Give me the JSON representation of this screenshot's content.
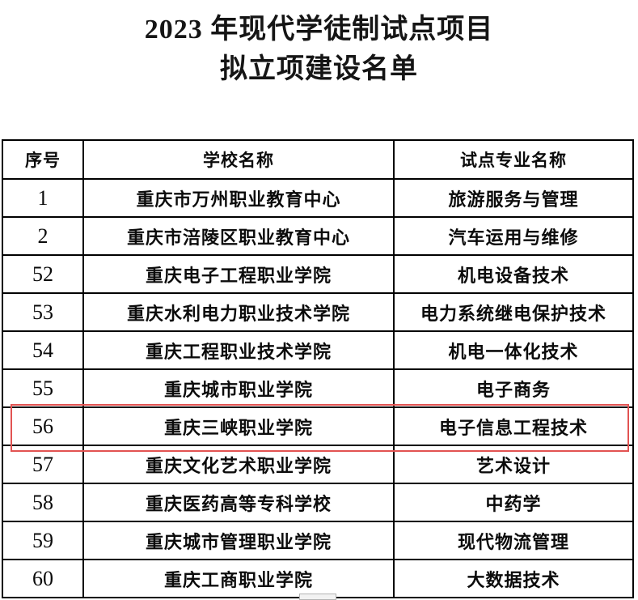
{
  "title": {
    "line1": "2023 年现代学徒制试点项目",
    "line2": "拟立项建设名单"
  },
  "table": {
    "headers": {
      "no": "序号",
      "school": "学校名称",
      "major": "试点专业名称"
    },
    "rows": [
      {
        "no": "1",
        "school": "重庆市万州职业教育中心",
        "major": "旅游服务与管理"
      },
      {
        "no": "2",
        "school": "重庆市涪陵区职业教育中心",
        "major": "汽车运用与维修"
      },
      {
        "no": "52",
        "school": "重庆电子工程职业学院",
        "major": "机电设备技术"
      },
      {
        "no": "53",
        "school": "重庆水利电力职业技术学院",
        "major": "电力系统继电保护技术"
      },
      {
        "no": "54",
        "school": "重庆工程职业技术学院",
        "major": "机电一体化技术"
      },
      {
        "no": "55",
        "school": "重庆城市职业学院",
        "major": "电子商务"
      },
      {
        "no": "56",
        "school": "重庆三峡职业学院",
        "major": "电子信息工程技术"
      },
      {
        "no": "57",
        "school": "重庆文化艺术职业学院",
        "major": "艺术设计"
      },
      {
        "no": "58",
        "school": "重庆医药高等专科学校",
        "major": "中药学"
      },
      {
        "no": "59",
        "school": "重庆城市管理职业学院",
        "major": "现代物流管理"
      },
      {
        "no": "60",
        "school": "重庆工商职业学院",
        "major": "大数据技术"
      }
    ]
  },
  "highlight": {
    "highlighted_row_no": "56",
    "color": "#e25352"
  }
}
